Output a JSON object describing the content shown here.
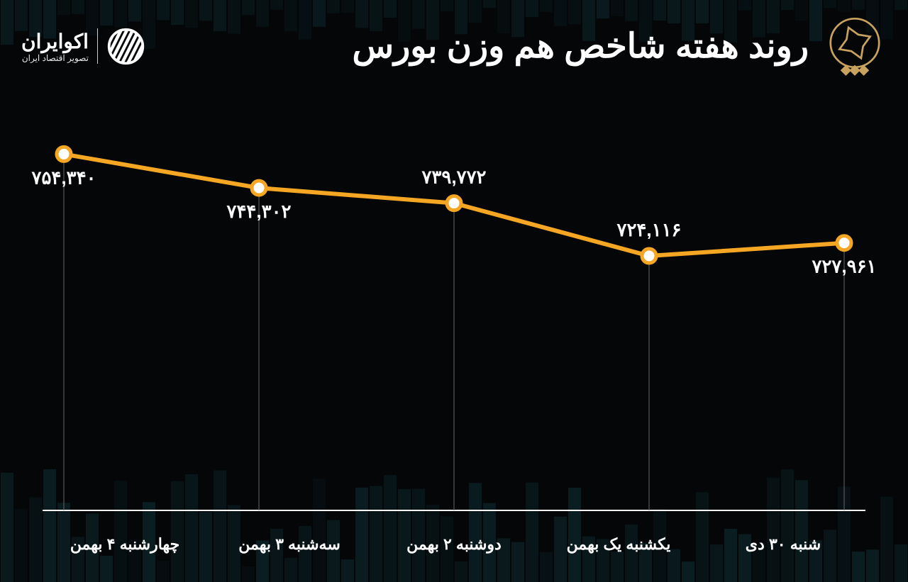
{
  "title": "روند هفته شاخص هم وزن بورس",
  "brand": {
    "main": "اکوایران",
    "sub": "تصویر اقتصاد ایران"
  },
  "chart": {
    "type": "line",
    "background_color": "#040608",
    "line_color": "#f5a623",
    "line_width": 6,
    "marker_fill": "#ffffff",
    "marker_stroke": "#f5a623",
    "marker_stroke_width": 5,
    "marker_radius": 10,
    "grid_color": "#666666",
    "grid_width": 1,
    "axis_color": "#ffffff",
    "axis_width": 2,
    "label_color": "#ffffff",
    "label_fontsize": 26,
    "xlabel_fontsize": 22,
    "bg_bar_color": "#0d2428",
    "seal_color": "#c9a25f",
    "points": [
      {
        "x_label": "شنبه ۳۰ دی",
        "value": 754340,
        "value_label": "۷۵۴,۳۴۰",
        "label_pos": "below"
      },
      {
        "x_label": "یکشنبه یک بهمن",
        "value": 744302,
        "value_label": "۷۴۴,۳۰۲",
        "label_pos": "below"
      },
      {
        "x_label": "دوشنبه ۲ بهمن",
        "value": 739772,
        "value_label": "۷۳۹,۷۷۲",
        "label_pos": "above"
      },
      {
        "x_label": "سه‌شنبه ۳ بهمن",
        "value": 724116,
        "value_label": "۷۲۴,۱۱۶",
        "label_pos": "above"
      },
      {
        "x_label": "چهارشنبه ۴ بهمن",
        "value": 727961,
        "value_label": "۷۲۷,۹۶۱",
        "label_pos": "below"
      }
    ],
    "y_domain": [
      700000,
      758000
    ]
  }
}
